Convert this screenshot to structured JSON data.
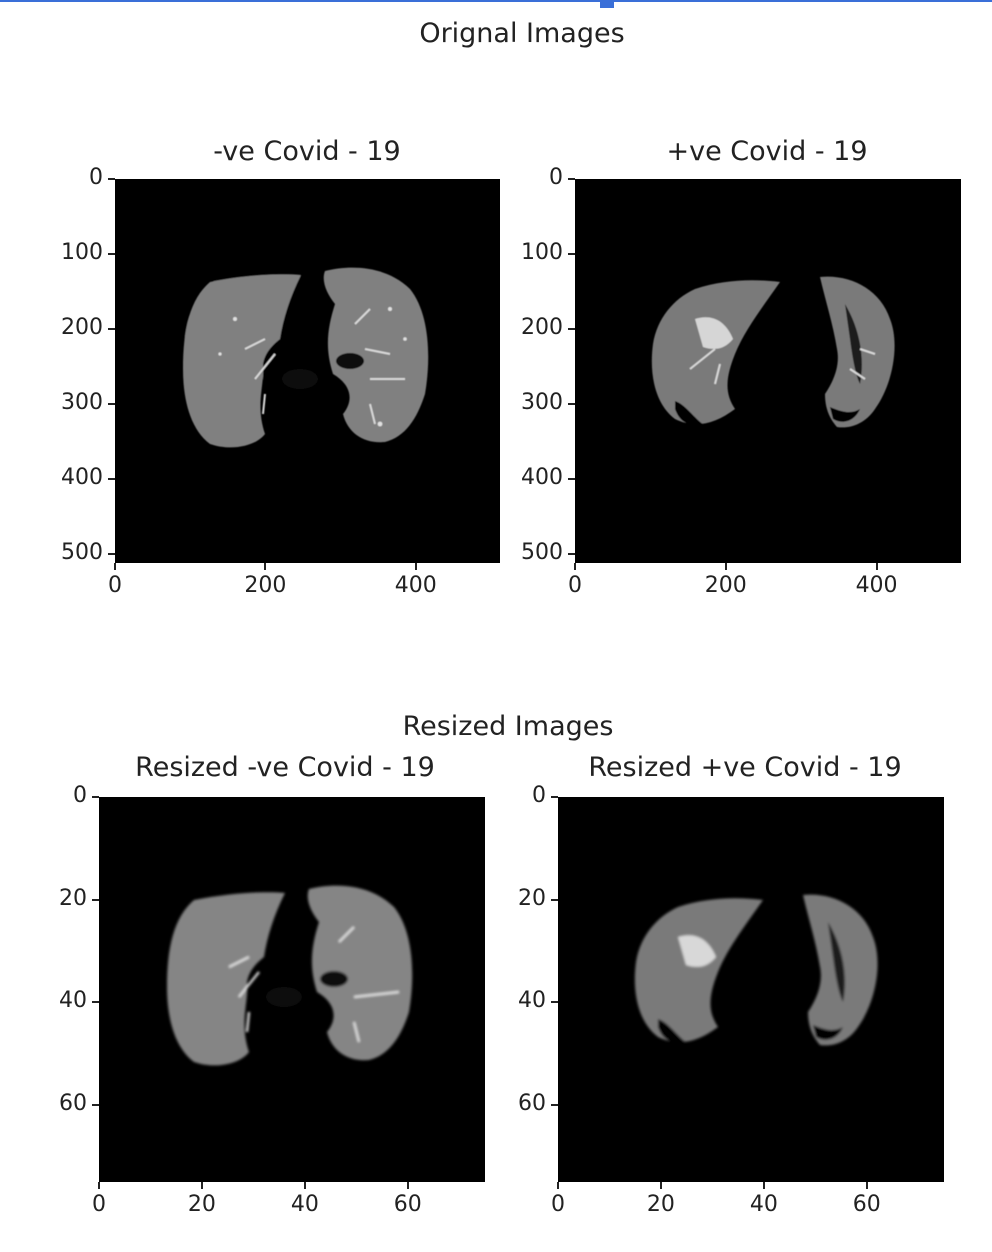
{
  "figure": {
    "sections": [
      {
        "title": "Orignal Images",
        "panels": [
          {
            "title": "-ve Covid - 19",
            "kind": "negative"
          },
          {
            "title": "+ve Covid - 19",
            "kind": "positive"
          }
        ],
        "xticks": [
          "0",
          "200",
          "400"
        ],
        "yticks": [
          "0",
          "100",
          "200",
          "300",
          "400",
          "500"
        ]
      },
      {
        "title": "Resized Images",
        "panels": [
          {
            "title": "Resized -ve Covid - 19",
            "kind": "negative"
          },
          {
            "title": "Resized +ve Covid - 19",
            "kind": "positive"
          }
        ],
        "xticks": [
          "0",
          "20",
          "40",
          "60"
        ],
        "yticks": [
          "0",
          "20",
          "40",
          "60"
        ]
      }
    ]
  },
  "colors": {
    "accent_bar": "#3a6fd8",
    "image_background": "#000000",
    "lung_tissue": "#8a8a8a"
  }
}
